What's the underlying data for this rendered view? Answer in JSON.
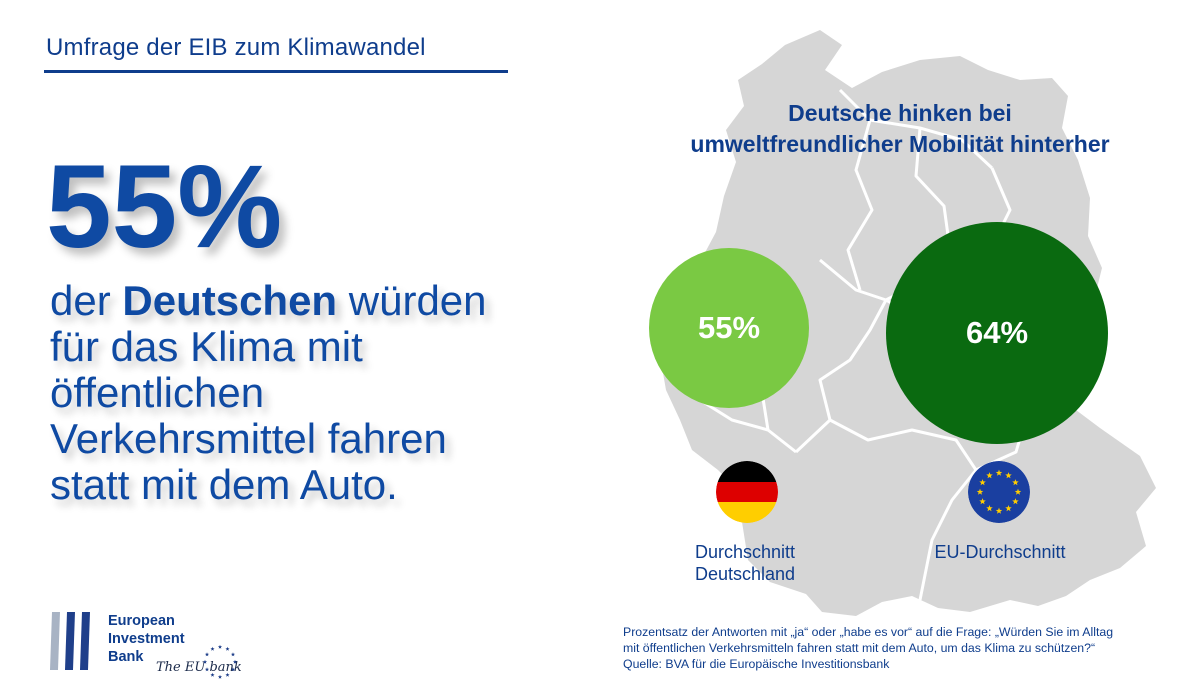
{
  "header": {
    "title": "Umfrage der EIB zum Klimawandel"
  },
  "headline": {
    "percent": "55%",
    "lines": [
      {
        "before": "der ",
        "bold": "Deutschen",
        "after": " würden"
      },
      {
        "text": "für das Klima mit"
      },
      {
        "text": "öffentlichen"
      },
      {
        "text": "Verkehrsmittel fahren"
      },
      {
        "text": "statt mit dem Auto."
      }
    ]
  },
  "right_title": {
    "line1": "Deutsche hinken bei",
    "line2": "umweltfreundlicher Mobilität hinterher"
  },
  "comparison": {
    "germany": {
      "value_label": "55%",
      "value": 55,
      "color": "#7ac943",
      "caption_line1": "Durchschnitt",
      "caption_line2": "Deutschland",
      "flag_icon": "germany-flag-icon"
    },
    "eu": {
      "value_label": "64%",
      "value": 64,
      "color": "#0a6a10",
      "caption_line1": "EU-Durchschnitt",
      "flag_icon": "eu-flag-icon"
    }
  },
  "footnote": {
    "line1": "Prozentsatz der Antworten mit „ja“ oder „habe es vor“ auf die Frage: „Würden Sie im Alltag",
    "line2": "mit öffentlichen Verkehrsmitteln fahren statt mit dem Auto, um das Klima zu schützen?“",
    "line3": "Quelle: BVA für die Europäische Investitionsbank"
  },
  "logo": {
    "line1": "European",
    "line2": "Investment",
    "line3": "Bank",
    "tagline": "The EU bank"
  },
  "colors": {
    "brand_blue": "#0f3d8c",
    "headline_blue": "#0f4aa3",
    "map_gray": "#d6d6d6"
  }
}
